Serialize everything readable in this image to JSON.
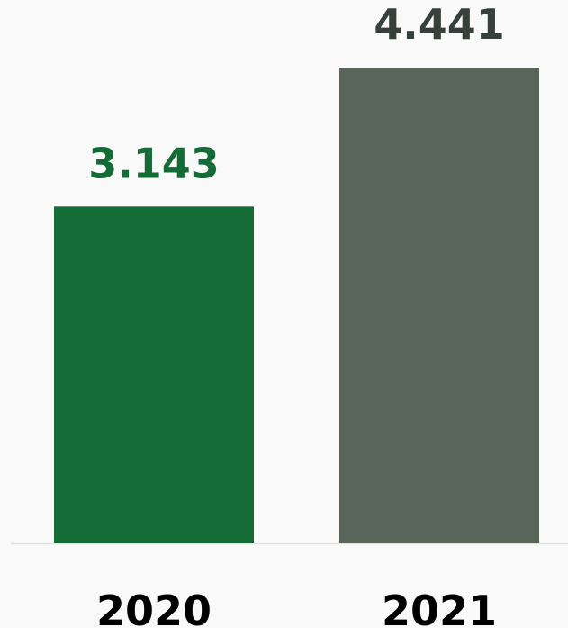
{
  "chart_data": {
    "type": "bar",
    "categories": [
      "2020",
      "2021"
    ],
    "values": [
      3143,
      4441
    ],
    "value_labels": [
      "3.143",
      "4.441"
    ],
    "colors": [
      "#146b35",
      "#5a655a"
    ],
    "label_colors": [
      "#146b35",
      "#37403b"
    ],
    "baseline_color": "#e2e2e2",
    "background": "#f9f9f9",
    "ylim": [
      0,
      4441
    ],
    "grid": false,
    "title": "",
    "xlabel": "",
    "ylabel": ""
  }
}
